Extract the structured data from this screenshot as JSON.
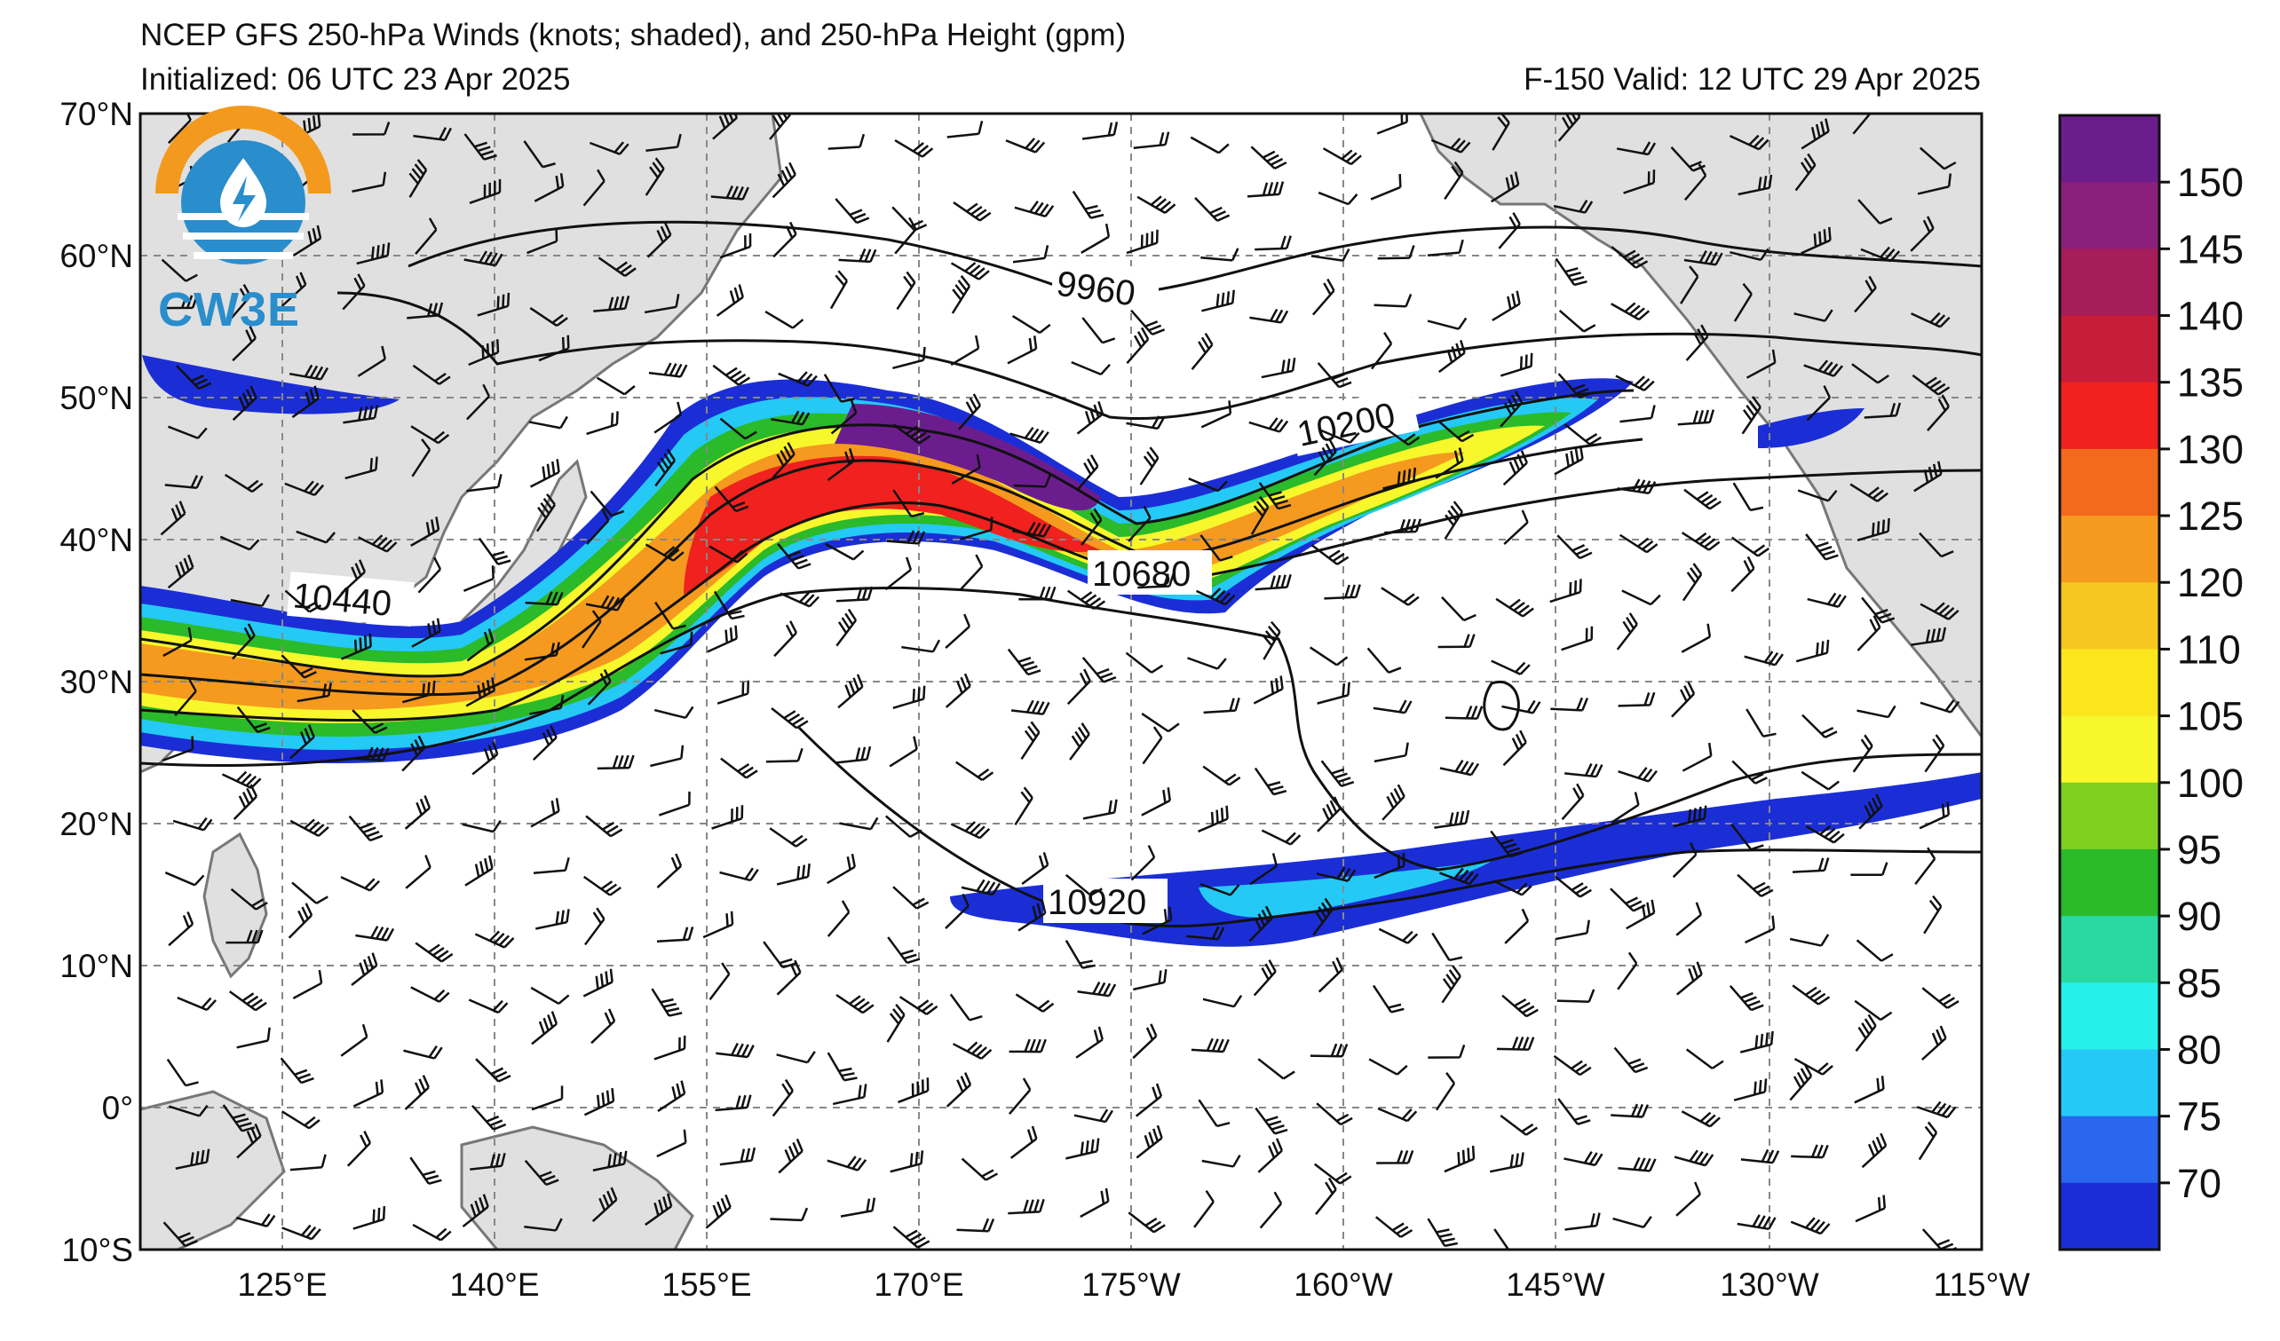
{
  "title_line1": "NCEP GFS 250-hPa Winds (knots; shaded), and 250-hPa Height (gpm)",
  "title_line2": "Initialized: 06 UTC 23 Apr 2025",
  "valid_text": "F-150  Valid: 12 UTC 29 Apr 2025",
  "logo_text": "CW3E",
  "lat_labels": [
    "70°N",
    "60°N",
    "50°N",
    "40°N",
    "30°N",
    "20°N",
    "10°N",
    "0°",
    "10°S"
  ],
  "lon_labels": [
    "125°E",
    "140°E",
    "155°E",
    "170°E",
    "175°W",
    "160°W",
    "145°W",
    "130°W",
    "115°W"
  ],
  "colorbar": {
    "ticks": [
      "150",
      "145",
      "140",
      "135",
      "130",
      "125",
      "120",
      "110",
      "105",
      "100",
      "95",
      "90",
      "85",
      "80",
      "75",
      "70"
    ],
    "colors": [
      "#6b1d8e",
      "#8a1f7c",
      "#a61d5a",
      "#c81d3a",
      "#f0211e",
      "#f46a1c",
      "#f59a1e",
      "#f7c621",
      "#fbe51d",
      "#f7f72c",
      "#7fd020",
      "#2aba2a",
      "#2ad9a0",
      "#27f0ea",
      "#25c9f5",
      "#2a66ee",
      "#1b2ed6"
    ]
  },
  "contour_labels": [
    "9960",
    "10200",
    "10440",
    "10680",
    "10920"
  ]
}
